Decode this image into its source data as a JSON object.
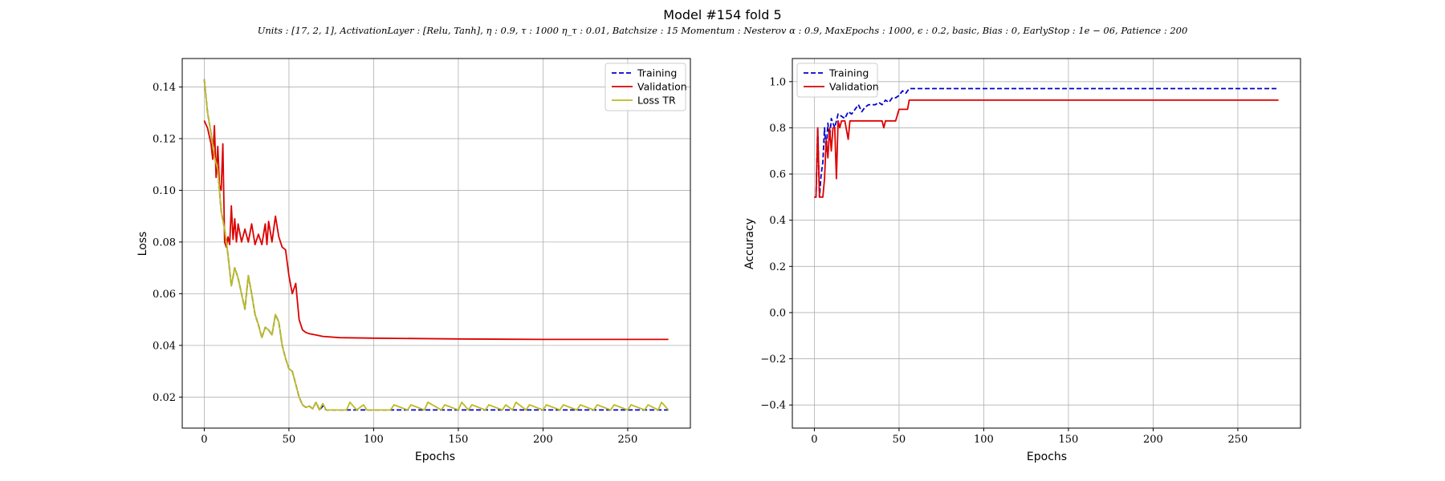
{
  "figure": {
    "title": "Model #154 fold 5",
    "subtitle": "Units : [17, 2, 1], ActivationLayer : [Relu, Tanh], η : 0.9, τ : 1000 η_τ : 0.01, Batchsize : 15 Momentum : Nesterov α : 0.9, MaxEpochs : 1000, ϵ : 0.2, basic, Bias : 0, EarlyStop : 1e − 06, Patience : 200"
  },
  "chart_data": [
    {
      "type": "line",
      "xlabel": "Epochs",
      "ylabel": "Loss",
      "xlim": [
        -13,
        287
      ],
      "ylim": [
        0.008,
        0.151
      ],
      "xticks": [
        0,
        50,
        100,
        150,
        200,
        250
      ],
      "yticks": [
        0.02,
        0.04,
        0.06,
        0.08,
        0.1,
        0.12,
        0.14
      ],
      "ytick_labels": [
        "0.02",
        "0.04",
        "0.06",
        "0.08",
        "0.10",
        "0.12",
        "0.14"
      ],
      "grid": true,
      "legend_position": "top-right",
      "series": [
        {
          "name": "Training",
          "color": "#0000cc",
          "dash": "dashed",
          "x": [
            0,
            2,
            4,
            6,
            8,
            10,
            12,
            14,
            16,
            18,
            20,
            22,
            24,
            26,
            28,
            30,
            32,
            34,
            36,
            38,
            40,
            42,
            44,
            46,
            48,
            50,
            52,
            54,
            56,
            58,
            60,
            62,
            64,
            66,
            68,
            70,
            72,
            74,
            80,
            90,
            100,
            120,
            150,
            180,
            210,
            240,
            274
          ],
          "y": [
            0.143,
            0.13,
            0.122,
            0.113,
            0.108,
            0.092,
            0.085,
            0.075,
            0.063,
            0.07,
            0.066,
            0.06,
            0.054,
            0.067,
            0.06,
            0.052,
            0.048,
            0.043,
            0.047,
            0.046,
            0.044,
            0.052,
            0.049,
            0.04,
            0.035,
            0.031,
            0.03,
            0.025,
            0.02,
            0.017,
            0.016,
            0.0165,
            0.0155,
            0.018,
            0.015,
            0.0165,
            0.015,
            0.015,
            0.015,
            0.015,
            0.015,
            0.015,
            0.015,
            0.015,
            0.015,
            0.015,
            0.015
          ]
        },
        {
          "name": "Validation",
          "color": "#dd0000",
          "dash": "solid",
          "x": [
            0,
            2,
            4,
            5,
            6,
            7,
            8,
            9,
            10,
            11,
            12,
            13,
            14,
            15,
            16,
            17,
            18,
            19,
            20,
            22,
            24,
            26,
            28,
            30,
            32,
            34,
            36,
            37,
            38,
            40,
            42,
            44,
            46,
            48,
            50,
            52,
            54,
            56,
            58,
            60,
            62,
            66,
            70,
            80,
            100,
            150,
            200,
            274
          ],
          "y": [
            0.127,
            0.124,
            0.118,
            0.112,
            0.125,
            0.105,
            0.117,
            0.102,
            0.1,
            0.118,
            0.08,
            0.078,
            0.082,
            0.079,
            0.094,
            0.081,
            0.089,
            0.08,
            0.087,
            0.08,
            0.085,
            0.08,
            0.087,
            0.079,
            0.083,
            0.079,
            0.087,
            0.079,
            0.088,
            0.08,
            0.09,
            0.082,
            0.078,
            0.077,
            0.067,
            0.06,
            0.064,
            0.05,
            0.046,
            0.045,
            0.0445,
            0.044,
            0.0435,
            0.043,
            0.0428,
            0.0425,
            0.0423,
            0.0423
          ]
        },
        {
          "name": "Loss TR",
          "color": "#bbbb22",
          "dash": "solid",
          "x": [
            0,
            2,
            4,
            6,
            8,
            10,
            12,
            14,
            16,
            18,
            20,
            22,
            24,
            26,
            28,
            30,
            32,
            34,
            36,
            38,
            40,
            42,
            44,
            46,
            48,
            50,
            52,
            54,
            56,
            58,
            60,
            62,
            64,
            66,
            68,
            70,
            72,
            74,
            80,
            84,
            86,
            90,
            94,
            96,
            100,
            110,
            112,
            120,
            122,
            130,
            132,
            140,
            142,
            150,
            152,
            156,
            158,
            166,
            168,
            176,
            178,
            182,
            184,
            190,
            192,
            200,
            202,
            210,
            212,
            220,
            222,
            230,
            232,
            240,
            242,
            250,
            252,
            260,
            262,
            268,
            270,
            274
          ],
          "y": [
            0.143,
            0.13,
            0.122,
            0.113,
            0.108,
            0.092,
            0.085,
            0.075,
            0.063,
            0.07,
            0.066,
            0.06,
            0.054,
            0.067,
            0.06,
            0.052,
            0.048,
            0.043,
            0.047,
            0.046,
            0.044,
            0.052,
            0.049,
            0.04,
            0.035,
            0.031,
            0.03,
            0.025,
            0.02,
            0.017,
            0.016,
            0.0165,
            0.0155,
            0.018,
            0.015,
            0.0175,
            0.015,
            0.015,
            0.015,
            0.015,
            0.018,
            0.015,
            0.017,
            0.015,
            0.015,
            0.015,
            0.017,
            0.015,
            0.017,
            0.015,
            0.018,
            0.015,
            0.017,
            0.015,
            0.018,
            0.015,
            0.017,
            0.015,
            0.017,
            0.015,
            0.017,
            0.015,
            0.018,
            0.015,
            0.017,
            0.015,
            0.017,
            0.015,
            0.017,
            0.015,
            0.017,
            0.015,
            0.017,
            0.015,
            0.017,
            0.015,
            0.017,
            0.015,
            0.017,
            0.015,
            0.018,
            0.015
          ]
        }
      ]
    },
    {
      "type": "line",
      "xlabel": "Epochs",
      "ylabel": "Accuracy",
      "xlim": [
        -13,
        287
      ],
      "ylim": [
        -0.5,
        1.1
      ],
      "xticks": [
        0,
        50,
        100,
        150,
        200,
        250
      ],
      "yticks": [
        -0.4,
        -0.2,
        0.0,
        0.2,
        0.4,
        0.6,
        0.8,
        1.0
      ],
      "ytick_labels": [
        "−0.4",
        "−0.2",
        "0.0",
        "0.2",
        "0.4",
        "0.6",
        "0.8",
        "1.0"
      ],
      "grid": true,
      "legend_position": "top-left",
      "series": [
        {
          "name": "Training",
          "color": "#0000cc",
          "dash": "dashed",
          "x": [
            0,
            1,
            2,
            3,
            4,
            5,
            6,
            7,
            8,
            9,
            10,
            12,
            14,
            16,
            18,
            20,
            22,
            24,
            26,
            28,
            30,
            32,
            34,
            36,
            38,
            40,
            42,
            44,
            46,
            48,
            50,
            52,
            54,
            56,
            58,
            60,
            80,
            100,
            150,
            200,
            274
          ],
          "y": [
            0.5,
            0.5,
            0.8,
            0.5,
            0.6,
            0.65,
            0.8,
            0.7,
            0.82,
            0.75,
            0.84,
            0.8,
            0.86,
            0.85,
            0.84,
            0.87,
            0.86,
            0.88,
            0.9,
            0.87,
            0.89,
            0.9,
            0.9,
            0.9,
            0.91,
            0.9,
            0.92,
            0.91,
            0.93,
            0.93,
            0.94,
            0.96,
            0.95,
            0.97,
            0.97,
            0.97,
            0.97,
            0.97,
            0.97,
            0.97,
            0.97
          ]
        },
        {
          "name": "Validation",
          "color": "#dd0000",
          "dash": "solid",
          "x": [
            0,
            1,
            2,
            3,
            5,
            6,
            7,
            8,
            9,
            10,
            11,
            12,
            13,
            14,
            15,
            16,
            18,
            20,
            21,
            22,
            25,
            28,
            30,
            32,
            35,
            40,
            41,
            42,
            45,
            48,
            50,
            52,
            53,
            54,
            55,
            56,
            60,
            100,
            150,
            200,
            274
          ],
          "y": [
            0.5,
            0.5,
            0.8,
            0.5,
            0.5,
            0.58,
            0.75,
            0.67,
            0.8,
            0.7,
            0.8,
            0.8,
            0.58,
            0.83,
            0.8,
            0.83,
            0.83,
            0.75,
            0.83,
            0.83,
            0.83,
            0.83,
            0.83,
            0.83,
            0.83,
            0.83,
            0.8,
            0.83,
            0.83,
            0.83,
            0.88,
            0.88,
            0.88,
            0.88,
            0.88,
            0.92,
            0.92,
            0.92,
            0.92,
            0.92,
            0.92
          ]
        }
      ]
    }
  ]
}
